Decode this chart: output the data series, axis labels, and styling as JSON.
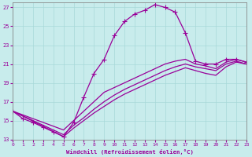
{
  "xlabel": "Windchill (Refroidissement éolien,°C)",
  "background_color": "#c8ecec",
  "grid_color": "#a8d8d8",
  "line_color": "#990099",
  "xlim": [
    0,
    23
  ],
  "ylim": [
    13,
    27.5
  ],
  "xticks": [
    0,
    1,
    2,
    3,
    4,
    5,
    6,
    7,
    8,
    9,
    10,
    11,
    12,
    13,
    14,
    15,
    16,
    17,
    18,
    19,
    20,
    21,
    22,
    23
  ],
  "yticks": [
    13,
    15,
    17,
    19,
    21,
    23,
    25,
    27
  ],
  "curve_main_x": [
    0,
    1,
    2,
    3,
    4,
    5,
    6,
    7,
    8,
    9,
    10,
    11,
    12,
    13,
    14,
    15,
    16,
    17,
    18,
    19,
    20,
    21,
    22,
    23
  ],
  "curve_main_y": [
    16.0,
    15.2,
    14.8,
    14.3,
    13.8,
    13.3,
    14.8,
    17.5,
    20.0,
    21.5,
    24.0,
    25.5,
    26.3,
    26.7,
    27.3,
    27.0,
    26.5,
    24.3,
    21.3,
    21.0,
    21.0,
    21.5,
    21.5,
    21.2
  ],
  "curve_diag1_x": [
    0,
    5,
    6,
    7,
    8,
    9,
    10,
    11,
    12,
    13,
    14,
    15,
    16,
    17,
    18,
    19,
    20,
    21,
    22,
    23
  ],
  "curve_diag1_y": [
    16.0,
    14.0,
    15.0,
    16.0,
    17.0,
    18.0,
    18.5,
    19.0,
    19.5,
    20.0,
    20.5,
    21.0,
    21.3,
    21.5,
    21.0,
    20.8,
    20.5,
    21.2,
    21.5,
    21.2
  ],
  "curve_diag2_x": [
    0,
    5,
    6,
    7,
    8,
    9,
    10,
    11,
    12,
    13,
    14,
    15,
    16,
    17,
    18,
    19,
    20,
    21,
    22,
    23
  ],
  "curve_diag2_y": [
    16.0,
    13.5,
    14.5,
    15.3,
    16.2,
    17.0,
    17.7,
    18.3,
    18.8,
    19.3,
    19.8,
    20.3,
    20.7,
    21.0,
    20.7,
    20.5,
    20.3,
    21.0,
    21.3,
    21.0
  ],
  "curve_diag3_x": [
    0,
    5,
    6,
    7,
    8,
    9,
    10,
    11,
    12,
    13,
    14,
    15,
    16,
    17,
    18,
    19,
    20,
    21,
    22,
    23
  ],
  "curve_diag3_y": [
    16.0,
    13.3,
    14.2,
    15.0,
    15.8,
    16.5,
    17.2,
    17.8,
    18.3,
    18.8,
    19.3,
    19.8,
    20.2,
    20.6,
    20.3,
    20.0,
    19.8,
    20.7,
    21.2,
    21.0
  ]
}
